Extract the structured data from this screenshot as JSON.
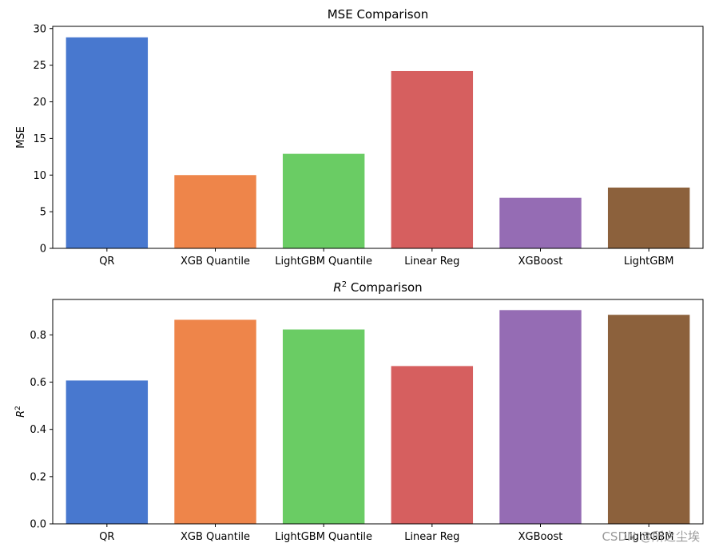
{
  "chart_data": [
    {
      "type": "bar",
      "title": "MSE Comparison",
      "xlabel": "",
      "ylabel": "MSE",
      "categories": [
        "QR",
        "XGB Quantile",
        "LightGBM Quantile",
        "Linear Reg",
        "XGBoost",
        "LightGBM"
      ],
      "values": [
        28.8,
        10.0,
        12.9,
        24.2,
        6.9,
        8.3
      ],
      "colors": [
        "#4878cf",
        "#ee854a",
        "#6acc64",
        "#d65f5f",
        "#956cb4",
        "#8c613c"
      ],
      "ylim": [
        0,
        30.3
      ],
      "yticks": [
        "0",
        "5",
        "10",
        "15",
        "20",
        "25",
        "30"
      ],
      "grid": false
    },
    {
      "type": "bar",
      "title": "Comparison",
      "title_symbol": "R",
      "title_superscript": "2",
      "xlabel": "",
      "ylabel": "R",
      "ylabel_superscript": "2",
      "categories": [
        "QR",
        "XGB Quantile",
        "LightGBM Quantile",
        "Linear Reg",
        "XGBoost",
        "LightGBM"
      ],
      "values": [
        0.607,
        0.864,
        0.823,
        0.668,
        0.905,
        0.885
      ],
      "colors": [
        "#4878cf",
        "#ee854a",
        "#6acc64",
        "#d65f5f",
        "#956cb4",
        "#8c613c"
      ],
      "ylim": [
        0,
        0.95
      ],
      "yticks": [
        "0.0",
        "0.2",
        "0.4",
        "0.6",
        "0.8"
      ],
      "grid": false
    }
  ],
  "watermark": "CSDN @所之尘埃"
}
